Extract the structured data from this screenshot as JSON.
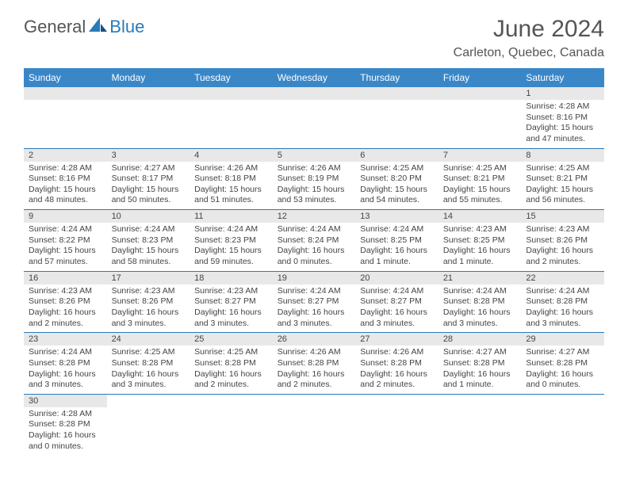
{
  "logo": {
    "general": "General",
    "blue": "Blue"
  },
  "title": "June 2024",
  "location": "Carleton, Quebec, Canada",
  "day_headers": [
    "Sunday",
    "Monday",
    "Tuesday",
    "Wednesday",
    "Thursday",
    "Friday",
    "Saturday"
  ],
  "colors": {
    "header_bg": "#3a87c8",
    "header_text": "#ffffff",
    "row_divider": "#2a7ab8",
    "daynum_bg": "#e8e8e8",
    "logo_blue": "#2a7ab8",
    "logo_gray": "#555555"
  },
  "weeks": [
    [
      null,
      null,
      null,
      null,
      null,
      null,
      {
        "n": "1",
        "sr": "Sunrise: 4:28 AM",
        "ss": "Sunset: 8:16 PM",
        "dl1": "Daylight: 15 hours",
        "dl2": "and 47 minutes."
      }
    ],
    [
      {
        "n": "2",
        "sr": "Sunrise: 4:28 AM",
        "ss": "Sunset: 8:16 PM",
        "dl1": "Daylight: 15 hours",
        "dl2": "and 48 minutes."
      },
      {
        "n": "3",
        "sr": "Sunrise: 4:27 AM",
        "ss": "Sunset: 8:17 PM",
        "dl1": "Daylight: 15 hours",
        "dl2": "and 50 minutes."
      },
      {
        "n": "4",
        "sr": "Sunrise: 4:26 AM",
        "ss": "Sunset: 8:18 PM",
        "dl1": "Daylight: 15 hours",
        "dl2": "and 51 minutes."
      },
      {
        "n": "5",
        "sr": "Sunrise: 4:26 AM",
        "ss": "Sunset: 8:19 PM",
        "dl1": "Daylight: 15 hours",
        "dl2": "and 53 minutes."
      },
      {
        "n": "6",
        "sr": "Sunrise: 4:25 AM",
        "ss": "Sunset: 8:20 PM",
        "dl1": "Daylight: 15 hours",
        "dl2": "and 54 minutes."
      },
      {
        "n": "7",
        "sr": "Sunrise: 4:25 AM",
        "ss": "Sunset: 8:21 PM",
        "dl1": "Daylight: 15 hours",
        "dl2": "and 55 minutes."
      },
      {
        "n": "8",
        "sr": "Sunrise: 4:25 AM",
        "ss": "Sunset: 8:21 PM",
        "dl1": "Daylight: 15 hours",
        "dl2": "and 56 minutes."
      }
    ],
    [
      {
        "n": "9",
        "sr": "Sunrise: 4:24 AM",
        "ss": "Sunset: 8:22 PM",
        "dl1": "Daylight: 15 hours",
        "dl2": "and 57 minutes."
      },
      {
        "n": "10",
        "sr": "Sunrise: 4:24 AM",
        "ss": "Sunset: 8:23 PM",
        "dl1": "Daylight: 15 hours",
        "dl2": "and 58 minutes."
      },
      {
        "n": "11",
        "sr": "Sunrise: 4:24 AM",
        "ss": "Sunset: 8:23 PM",
        "dl1": "Daylight: 15 hours",
        "dl2": "and 59 minutes."
      },
      {
        "n": "12",
        "sr": "Sunrise: 4:24 AM",
        "ss": "Sunset: 8:24 PM",
        "dl1": "Daylight: 16 hours",
        "dl2": "and 0 minutes."
      },
      {
        "n": "13",
        "sr": "Sunrise: 4:24 AM",
        "ss": "Sunset: 8:25 PM",
        "dl1": "Daylight: 16 hours",
        "dl2": "and 1 minute."
      },
      {
        "n": "14",
        "sr": "Sunrise: 4:23 AM",
        "ss": "Sunset: 8:25 PM",
        "dl1": "Daylight: 16 hours",
        "dl2": "and 1 minute."
      },
      {
        "n": "15",
        "sr": "Sunrise: 4:23 AM",
        "ss": "Sunset: 8:26 PM",
        "dl1": "Daylight: 16 hours",
        "dl2": "and 2 minutes."
      }
    ],
    [
      {
        "n": "16",
        "sr": "Sunrise: 4:23 AM",
        "ss": "Sunset: 8:26 PM",
        "dl1": "Daylight: 16 hours",
        "dl2": "and 2 minutes."
      },
      {
        "n": "17",
        "sr": "Sunrise: 4:23 AM",
        "ss": "Sunset: 8:26 PM",
        "dl1": "Daylight: 16 hours",
        "dl2": "and 3 minutes."
      },
      {
        "n": "18",
        "sr": "Sunrise: 4:23 AM",
        "ss": "Sunset: 8:27 PM",
        "dl1": "Daylight: 16 hours",
        "dl2": "and 3 minutes."
      },
      {
        "n": "19",
        "sr": "Sunrise: 4:24 AM",
        "ss": "Sunset: 8:27 PM",
        "dl1": "Daylight: 16 hours",
        "dl2": "and 3 minutes."
      },
      {
        "n": "20",
        "sr": "Sunrise: 4:24 AM",
        "ss": "Sunset: 8:27 PM",
        "dl1": "Daylight: 16 hours",
        "dl2": "and 3 minutes."
      },
      {
        "n": "21",
        "sr": "Sunrise: 4:24 AM",
        "ss": "Sunset: 8:28 PM",
        "dl1": "Daylight: 16 hours",
        "dl2": "and 3 minutes."
      },
      {
        "n": "22",
        "sr": "Sunrise: 4:24 AM",
        "ss": "Sunset: 8:28 PM",
        "dl1": "Daylight: 16 hours",
        "dl2": "and 3 minutes."
      }
    ],
    [
      {
        "n": "23",
        "sr": "Sunrise: 4:24 AM",
        "ss": "Sunset: 8:28 PM",
        "dl1": "Daylight: 16 hours",
        "dl2": "and 3 minutes."
      },
      {
        "n": "24",
        "sr": "Sunrise: 4:25 AM",
        "ss": "Sunset: 8:28 PM",
        "dl1": "Daylight: 16 hours",
        "dl2": "and 3 minutes."
      },
      {
        "n": "25",
        "sr": "Sunrise: 4:25 AM",
        "ss": "Sunset: 8:28 PM",
        "dl1": "Daylight: 16 hours",
        "dl2": "and 2 minutes."
      },
      {
        "n": "26",
        "sr": "Sunrise: 4:26 AM",
        "ss": "Sunset: 8:28 PM",
        "dl1": "Daylight: 16 hours",
        "dl2": "and 2 minutes."
      },
      {
        "n": "27",
        "sr": "Sunrise: 4:26 AM",
        "ss": "Sunset: 8:28 PM",
        "dl1": "Daylight: 16 hours",
        "dl2": "and 2 minutes."
      },
      {
        "n": "28",
        "sr": "Sunrise: 4:27 AM",
        "ss": "Sunset: 8:28 PM",
        "dl1": "Daylight: 16 hours",
        "dl2": "and 1 minute."
      },
      {
        "n": "29",
        "sr": "Sunrise: 4:27 AM",
        "ss": "Sunset: 8:28 PM",
        "dl1": "Daylight: 16 hours",
        "dl2": "and 0 minutes."
      }
    ],
    [
      {
        "n": "30",
        "sr": "Sunrise: 4:28 AM",
        "ss": "Sunset: 8:28 PM",
        "dl1": "Daylight: 16 hours",
        "dl2": "and 0 minutes."
      },
      null,
      null,
      null,
      null,
      null,
      null
    ]
  ]
}
